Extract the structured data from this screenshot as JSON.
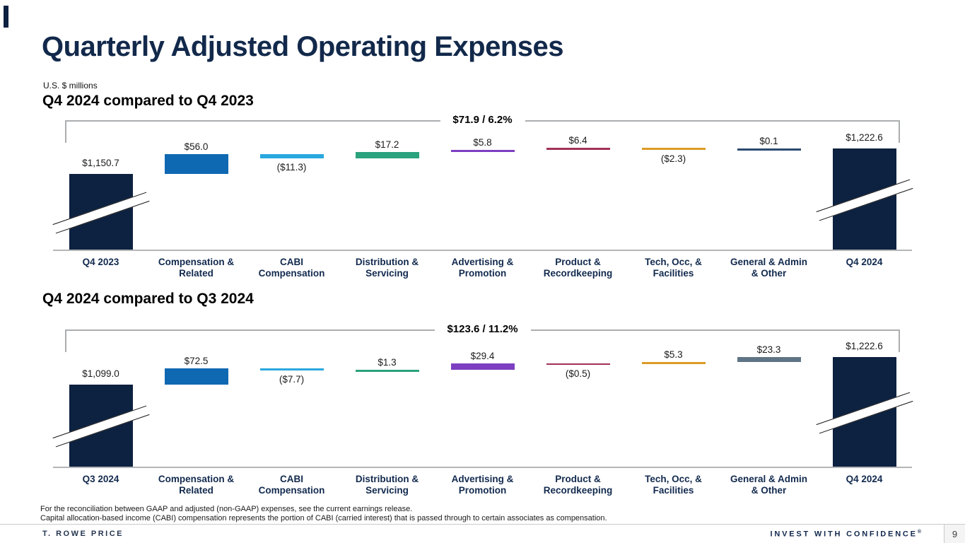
{
  "slide": {
    "title": "Quarterly Adjusted Operating Expenses",
    "units_note": "U.S. $ millions",
    "footnotes": [
      "For the reconciliation between GAAP and adjusted (non-GAAP) expenses, see the current earnings release.",
      "Capital allocation-based income (CABI) compensation represents the portion of CABI (carried interest) that is passed through to certain associates as compensation."
    ],
    "footer": {
      "brand": "T. ROWE PRICE",
      "tagline": "INVEST WITH CONFIDENCE",
      "tagline_reg": "®",
      "page_number": "9"
    }
  },
  "colors": {
    "navy": "#0d2140",
    "heading_navy": "#12294b",
    "axis_line": "#b4b6b8",
    "bracket_gray": "#abadaf"
  },
  "chart_data": [
    {
      "type": "waterfall",
      "title": "Q4 2024 compared to Q4 2023",
      "units": "U.S. $ millions",
      "bracket_label": "$71.9 / 6.2%",
      "total_change": 71.9,
      "total_change_pct": "6.2%",
      "steps": [
        {
          "label": "Q4 2023",
          "value": 1150.7,
          "display": "$1,150.7",
          "kind": "total",
          "color": "#0d2140"
        },
        {
          "label": "Compensation &\nRelated",
          "value": 56.0,
          "display": "$56.0",
          "kind": "delta",
          "color": "#0f68b2"
        },
        {
          "label": "CABI\nCompensation",
          "value": -11.3,
          "display": "($11.3)",
          "kind": "delta",
          "color": "#29a8de"
        },
        {
          "label": "Distribution &\nServicing",
          "value": 17.2,
          "display": "$17.2",
          "kind": "delta",
          "color": "#2aa27d"
        },
        {
          "label": "Advertising &\nPromotion",
          "value": 5.8,
          "display": "$5.8",
          "kind": "delta",
          "color": "#7d3fc1"
        },
        {
          "label": "Product &\nRecordkeeping",
          "value": 6.4,
          "display": "$6.4",
          "kind": "delta",
          "color": "#a23158"
        },
        {
          "label": "Tech, Occ, &\nFacilities",
          "value": -2.3,
          "display": "($2.3)",
          "kind": "delta",
          "color": "#dd9b26"
        },
        {
          "label": "General & Admin\n& Other",
          "value": 0.1,
          "display": "$0.1",
          "kind": "delta",
          "color": "#2c4a70"
        },
        {
          "label": "Q4 2024",
          "value": 1222.6,
          "display": "$1,222.6",
          "kind": "total",
          "color": "#0d2140"
        }
      ]
    },
    {
      "type": "waterfall",
      "title": "Q4 2024 compared to Q3 2024",
      "units": "U.S. $ millions",
      "bracket_label": "$123.6 / 11.2%",
      "total_change": 123.6,
      "total_change_pct": "11.2%",
      "steps": [
        {
          "label": "Q3 2024",
          "value": 1099.0,
          "display": "$1,099.0",
          "kind": "total",
          "color": "#0d2140"
        },
        {
          "label": "Compensation &\nRelated",
          "value": 72.5,
          "display": "$72.5",
          "kind": "delta",
          "color": "#0f68b2"
        },
        {
          "label": "CABI\nCompensation",
          "value": -7.7,
          "display": "($7.7)",
          "kind": "delta",
          "color": "#29a8de"
        },
        {
          "label": "Distribution &\nServicing",
          "value": 1.3,
          "display": "$1.3",
          "kind": "delta",
          "color": "#2aa27d"
        },
        {
          "label": "Advertising &\nPromotion",
          "value": 29.4,
          "display": "$29.4",
          "kind": "delta",
          "color": "#7d3fc1"
        },
        {
          "label": "Product &\nRecordkeeping",
          "value": -0.5,
          "display": "($0.5)",
          "kind": "delta",
          "color": "#a23158"
        },
        {
          "label": "Tech, Occ, &\nFacilities",
          "value": 5.3,
          "display": "$5.3",
          "kind": "delta",
          "color": "#dd9b26"
        },
        {
          "label": "General & Admin\n& Other",
          "value": 23.3,
          "display": "$23.3",
          "kind": "delta",
          "color": "#5f7586"
        },
        {
          "label": "Q4 2024",
          "value": 1222.6,
          "display": "$1,222.6",
          "kind": "total",
          "color": "#0d2140"
        }
      ]
    }
  ]
}
